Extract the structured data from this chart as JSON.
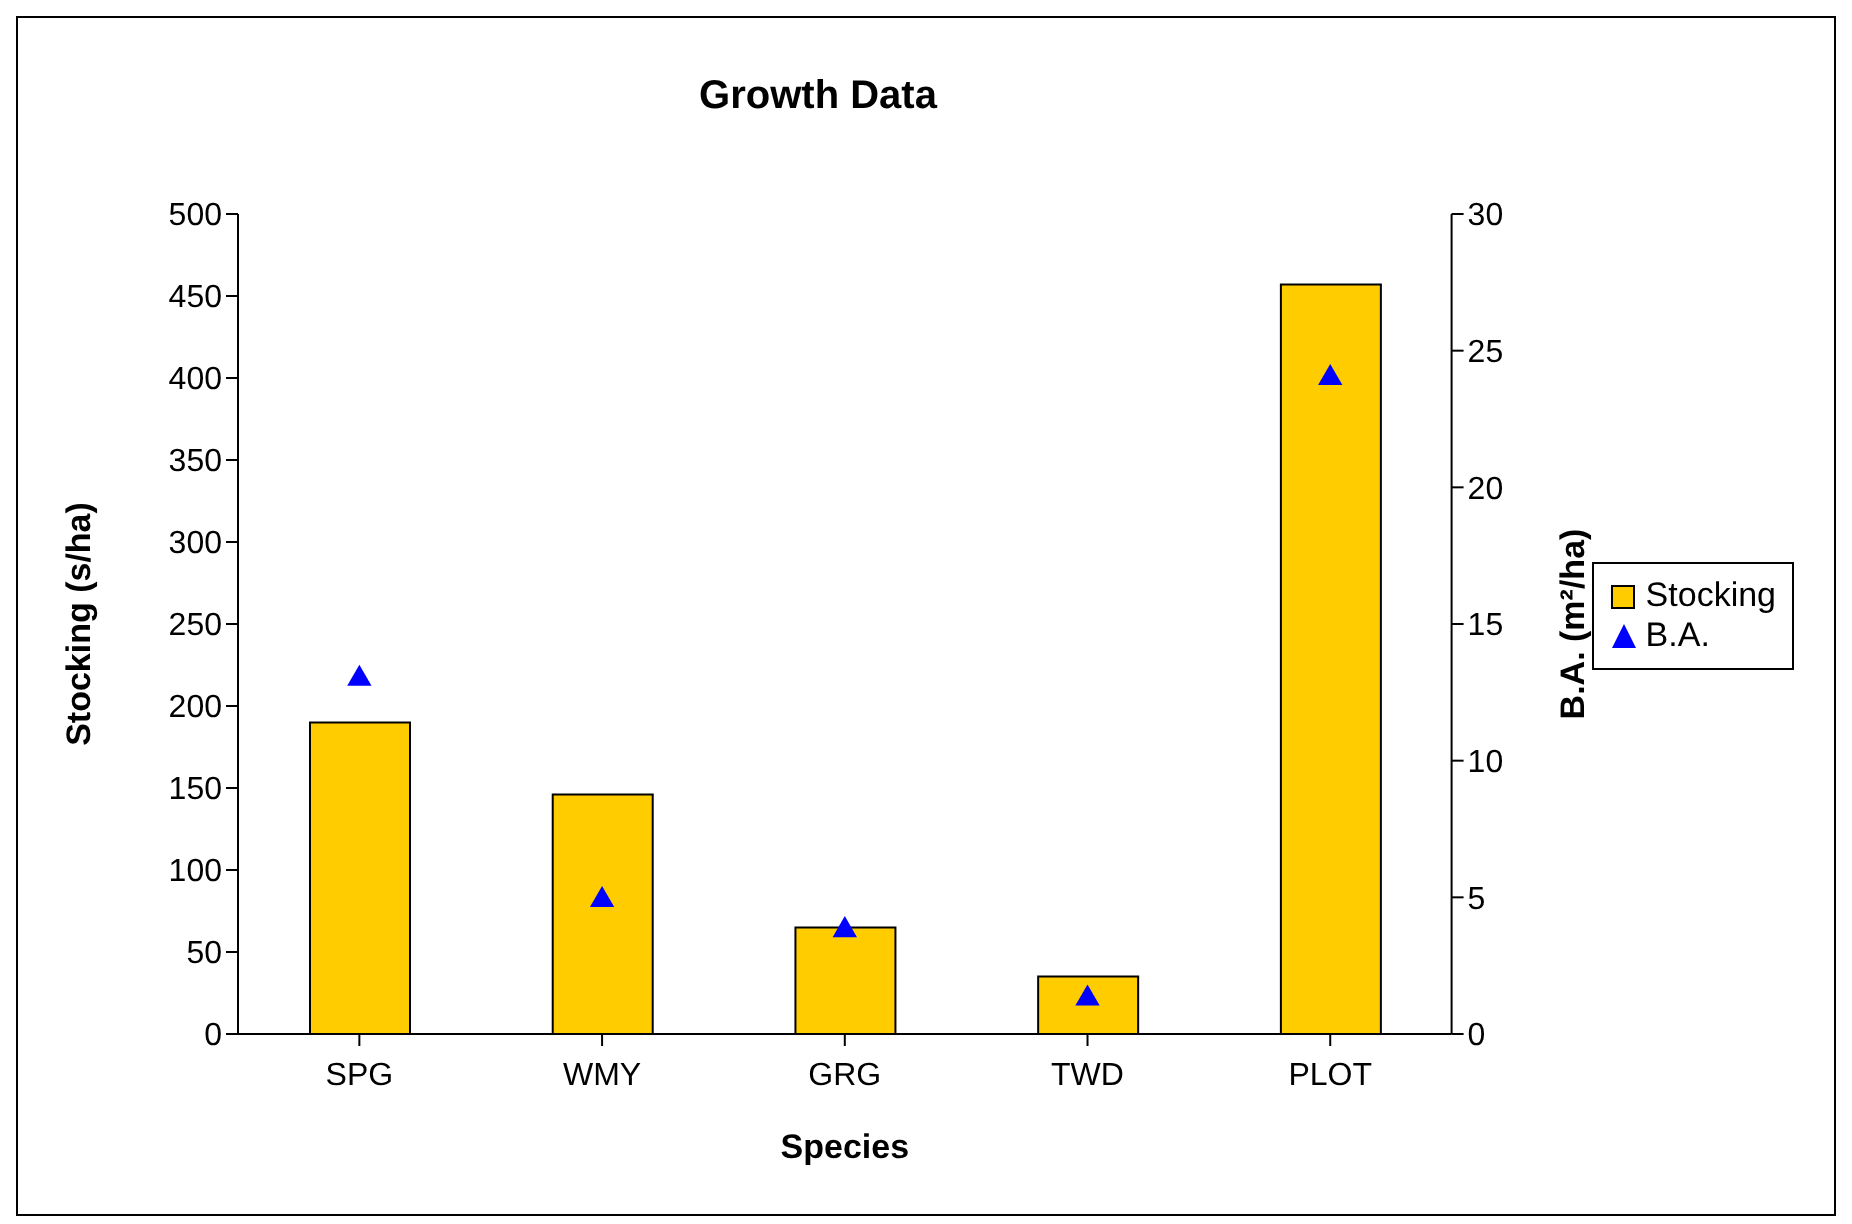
{
  "chart_data": {
    "type": "bar",
    "title": "Growth Data",
    "xlabel": "Species",
    "ylabel": "Stocking (s/ha)",
    "y2label": "B.A. (m²/ha)",
    "categories": [
      "SPG",
      "WMY",
      "GRG",
      "TWD",
      "PLOT"
    ],
    "series": [
      {
        "name": "Stocking",
        "color": "#ffcc00",
        "values": [
          190,
          146,
          65,
          35,
          457
        ]
      },
      {
        "name": "B.A.",
        "type": "scatter",
        "axis": "y2",
        "marker": "triangle",
        "color": "#0000ff",
        "values": [
          13,
          4.9,
          3.8,
          1.3,
          24
        ]
      }
    ],
    "ylim": [
      0,
      500
    ],
    "yticks": [
      0,
      50,
      100,
      150,
      200,
      250,
      300,
      350,
      400,
      450,
      500
    ],
    "y2lim": [
      0,
      30
    ],
    "y2ticks": [
      0,
      5,
      10,
      15,
      20,
      25,
      30
    ],
    "grid": false,
    "legend": "right"
  }
}
